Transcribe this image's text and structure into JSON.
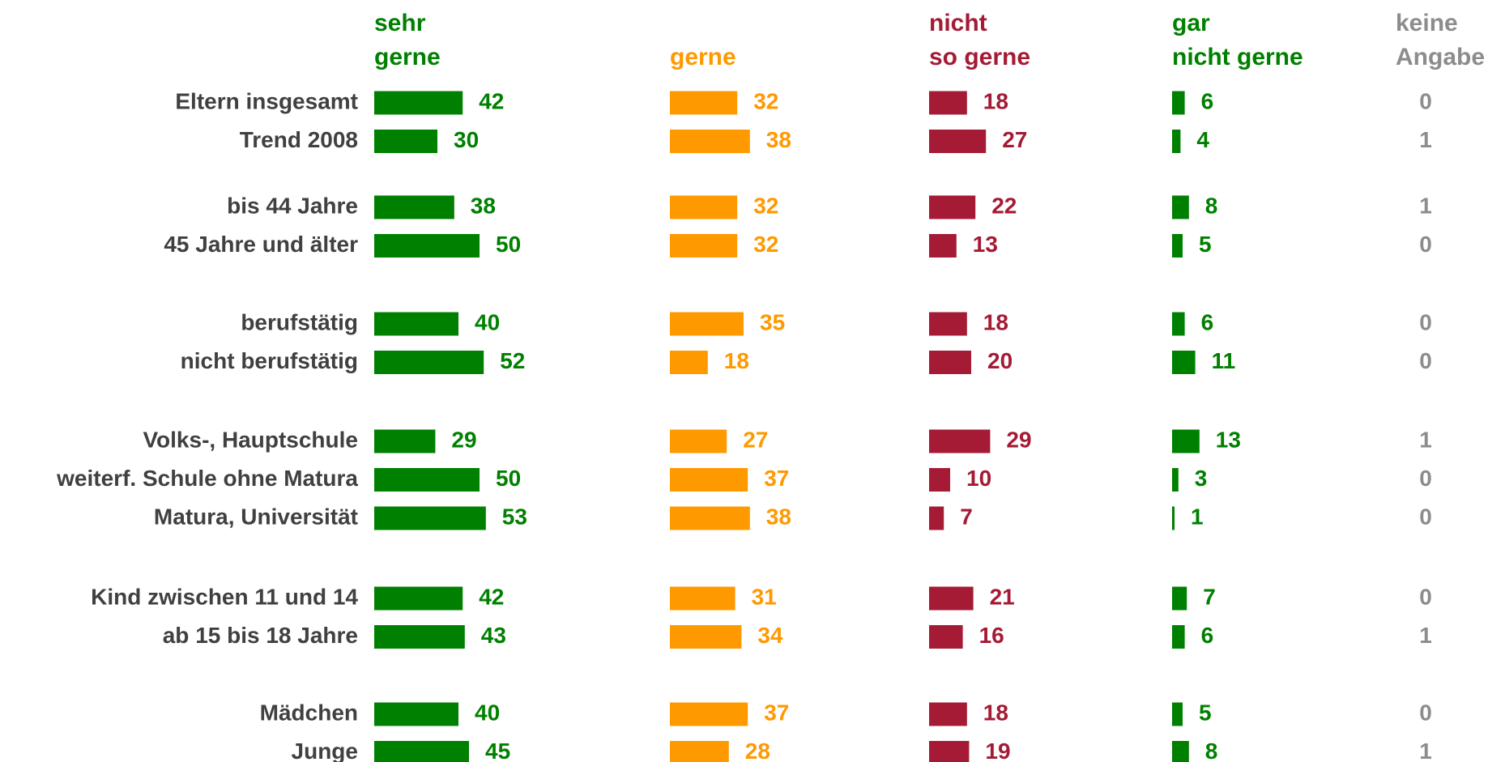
{
  "chart_data": {
    "type": "bar",
    "columns": [
      {
        "key": "sehr_gerne",
        "header": [
          "sehr",
          "gerne"
        ],
        "color": "#008000",
        "text_color": "#008000"
      },
      {
        "key": "gerne",
        "header": [
          "",
          "gerne"
        ],
        "color": "#ff9900",
        "text_color": "#ff9900"
      },
      {
        "key": "nicht_so_gerne",
        "header": [
          "nicht",
          "so gerne"
        ],
        "color": "#a51a34",
        "text_color": "#a51a34"
      },
      {
        "key": "gar_nicht_gerne",
        "header": [
          "gar",
          "nicht gerne"
        ],
        "color": "#008000",
        "text_color": "#008000"
      },
      {
        "key": "keine_angabe",
        "header": [
          "keine",
          "Angabe"
        ],
        "color": "#999999",
        "text_color": "#8c8c8c"
      }
    ],
    "groups": [
      {
        "rows": [
          {
            "label": "Eltern insgesamt",
            "values": [
              42,
              32,
              18,
              6,
              0
            ]
          },
          {
            "label": "Trend 2008",
            "values": [
              30,
              38,
              27,
              4,
              1
            ]
          }
        ]
      },
      {
        "rows": [
          {
            "label": "bis 44 Jahre",
            "values": [
              38,
              32,
              22,
              8,
              1
            ]
          },
          {
            "label": "45 Jahre und älter",
            "values": [
              50,
              32,
              13,
              5,
              0
            ]
          }
        ]
      },
      {
        "rows": [
          {
            "label": "berufstätig",
            "values": [
              40,
              35,
              18,
              6,
              0
            ]
          },
          {
            "label": "nicht berufstätig",
            "values": [
              52,
              18,
              20,
              11,
              0
            ]
          }
        ]
      },
      {
        "rows": [
          {
            "label": "Volks-, Hauptschule",
            "values": [
              29,
              27,
              29,
              13,
              1
            ]
          },
          {
            "label": "weiterf. Schule ohne Matura",
            "values": [
              50,
              37,
              10,
              3,
              0
            ]
          },
          {
            "label": "Matura, Universität",
            "values": [
              53,
              38,
              7,
              1,
              0
            ]
          }
        ]
      },
      {
        "rows": [
          {
            "label": "Kind zwischen 11 und 14",
            "values": [
              42,
              31,
              21,
              7,
              0
            ]
          },
          {
            "label": "ab 15 bis 18 Jahre",
            "values": [
              43,
              34,
              16,
              6,
              1
            ]
          }
        ]
      },
      {
        "rows": [
          {
            "label": "Mädchen",
            "values": [
              40,
              37,
              18,
              5,
              0
            ]
          },
          {
            "label": "Junge",
            "values": [
              45,
              28,
              19,
              8,
              1
            ]
          }
        ]
      }
    ],
    "bar_series": [
      0,
      1,
      2,
      3
    ],
    "value_range": [
      0,
      100
    ],
    "grid": false,
    "legend": "none"
  }
}
